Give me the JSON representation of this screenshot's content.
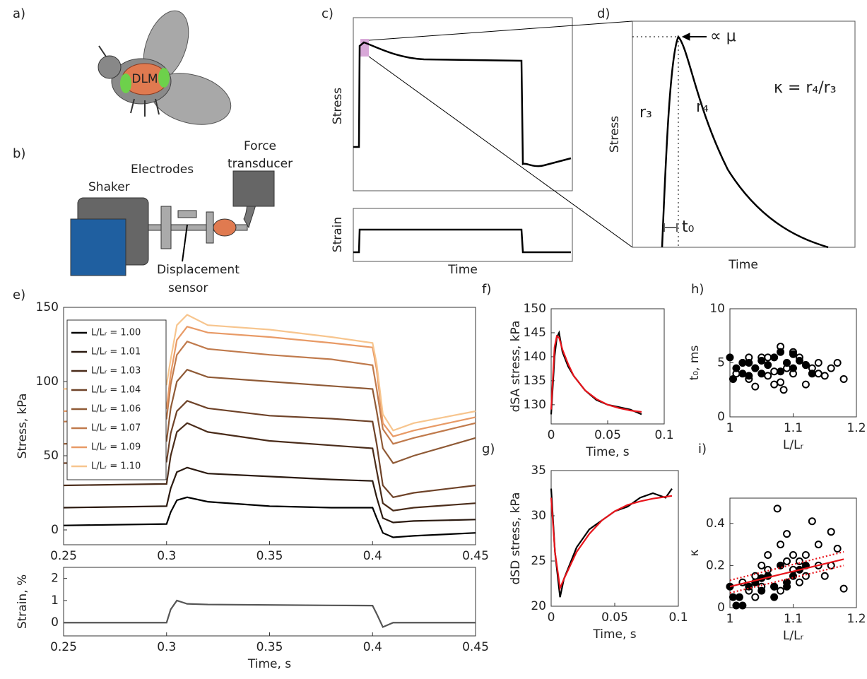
{
  "panel_labels": [
    "a)",
    "b)",
    "c)",
    "d)",
    "e)",
    "f)",
    "g)",
    "h)",
    "i)"
  ],
  "illustrations": {
    "fly_label": "DLM",
    "shaker": "Shaker",
    "electrodes": "Electrodes",
    "force_transducer": [
      "Force",
      "transducer"
    ],
    "displacement_sensor": [
      "Displacement",
      "sensor"
    ]
  },
  "schematics": {
    "c": {
      "stress": "Stress",
      "strain": "Strain",
      "time": "Time"
    },
    "d": {
      "stress": "Stress",
      "time": "Time",
      "peak": "∝ μ",
      "kappa": "κ = r₄/r₃",
      "rise": "r₃",
      "decay": "r₄",
      "delay": "t₀"
    }
  },
  "chart_data": [
    {
      "type": "line",
      "ylabel": "Stress, kPa",
      "xlim": [
        0.25,
        0.45
      ],
      "ylim": [
        -10,
        150
      ],
      "xticks": [
        0.25,
        0.3,
        0.35,
        0.4,
        0.45
      ],
      "yticks": [
        0,
        50,
        100,
        150
      ],
      "legend": "upper left",
      "x": [
        0.25,
        0.3,
        0.302,
        0.305,
        0.31,
        0.32,
        0.35,
        0.38,
        0.4,
        0.402,
        0.405,
        0.41,
        0.42,
        0.45
      ],
      "series": [
        {
          "name": "L/Lᵣ = 1.00",
          "color": "#000000",
          "values": [
            3,
            4,
            12,
            20,
            22,
            19,
            16,
            15,
            15,
            8,
            -2,
            -5,
            -4,
            -2
          ]
        },
        {
          "name": "L/Lᵣ = 1.01",
          "color": "#2b1a10",
          "values": [
            15,
            16,
            28,
            39,
            42,
            38,
            36,
            34,
            33,
            22,
            8,
            5,
            6,
            7
          ]
        },
        {
          "name": "L/Lᵣ = 1.03",
          "color": "#4a2c1a",
          "values": [
            30,
            31,
            50,
            66,
            72,
            66,
            60,
            57,
            55,
            40,
            18,
            13,
            15,
            18
          ]
        },
        {
          "name": "L/Lᵣ = 1.04",
          "color": "#6e4228",
          "values": [
            45,
            46,
            65,
            80,
            87,
            82,
            77,
            75,
            73,
            58,
            30,
            22,
            25,
            30
          ]
        },
        {
          "name": "L/Lᵣ = 1.06",
          "color": "#8f5a36",
          "values": [
            58,
            60,
            82,
            100,
            108,
            103,
            100,
            97,
            95,
            80,
            55,
            45,
            50,
            62
          ]
        },
        {
          "name": "L/Lᵣ = 1.07",
          "color": "#c07a4c",
          "values": [
            73,
            75,
            98,
            118,
            127,
            122,
            118,
            115,
            111,
            95,
            68,
            58,
            62,
            72
          ]
        },
        {
          "name": "L/Lᵣ = 1.09",
          "color": "#e89a66",
          "values": [
            80,
            82,
            105,
            128,
            137,
            133,
            130,
            126,
            123,
            108,
            72,
            63,
            67,
            76
          ]
        },
        {
          "name": "L/Lᵣ = 1.10",
          "color": "#f7c58e",
          "values": [
            95,
            98,
            115,
            138,
            145,
            138,
            135,
            130,
            126,
            112,
            78,
            67,
            72,
            80
          ]
        }
      ]
    },
    {
      "type": "line",
      "xlabel": "Time, s",
      "ylabel": "Strain, %",
      "xlim": [
        0.25,
        0.45
      ],
      "ylim": [
        -0.6,
        2.5
      ],
      "xticks": [
        0.25,
        0.3,
        0.35,
        0.4,
        0.45
      ],
      "yticks": [
        0,
        1,
        2
      ],
      "x": [
        0.25,
        0.3,
        0.302,
        0.305,
        0.31,
        0.32,
        0.35,
        0.38,
        0.4,
        0.402,
        0.405,
        0.41,
        0.42,
        0.45
      ],
      "series": [
        {
          "color": "#555555",
          "values": [
            0,
            0,
            0.6,
            1.0,
            0.85,
            0.82,
            0.8,
            0.78,
            0.77,
            0.4,
            -0.2,
            0,
            0,
            0
          ]
        }
      ]
    },
    {
      "type": "line",
      "xlabel": "Time, s",
      "ylabel": "dSA stress, kPa",
      "xlim": [
        0,
        0.1
      ],
      "ylim": [
        126,
        150
      ],
      "xticks": [
        0,
        0.05,
        0.1
      ],
      "yticks": [
        130,
        135,
        140,
        145,
        150
      ],
      "x": [
        0,
        0.003,
        0.005,
        0.007,
        0.01,
        0.015,
        0.02,
        0.03,
        0.04,
        0.05,
        0.06,
        0.07,
        0.08
      ],
      "series": [
        {
          "color": "#000000",
          "values": [
            128,
            140,
            144,
            145,
            141,
            138,
            136,
            133,
            131,
            130,
            129.5,
            129,
            128
          ]
        },
        {
          "color": "#e8141b",
          "values": [
            129,
            142,
            144.3,
            144,
            141.5,
            138.5,
            136,
            133,
            131.2,
            130,
            129.3,
            128.8,
            128.5
          ]
        }
      ]
    },
    {
      "type": "line",
      "xlabel": "Time, s",
      "ylabel": "dSD stress, kPa",
      "xlim": [
        0,
        0.1
      ],
      "ylim": [
        20,
        35
      ],
      "xticks": [
        0,
        0.05,
        0.1
      ],
      "yticks": [
        20,
        25,
        30,
        35
      ],
      "x": [
        0,
        0.003,
        0.007,
        0.01,
        0.02,
        0.03,
        0.04,
        0.05,
        0.06,
        0.07,
        0.08,
        0.09,
        0.095
      ],
      "series": [
        {
          "color": "#000000",
          "values": [
            33,
            26,
            21,
            23,
            26.5,
            28.5,
            29.5,
            30.5,
            31,
            32,
            32.5,
            32,
            33
          ]
        },
        {
          "color": "#e8141b",
          "values": [
            32,
            26,
            22,
            23,
            26,
            28,
            29.5,
            30.5,
            31.2,
            31.6,
            31.9,
            32.1,
            32.2
          ]
        }
      ]
    },
    {
      "type": "scatter",
      "xlabel": "L/Lᵣ",
      "ylabel": "t₀, ms",
      "xlim": [
        1,
        1.2
      ],
      "ylim": [
        0,
        10
      ],
      "xticks": [
        1,
        1.1,
        1.2
      ],
      "yticks": [
        0,
        5,
        10
      ],
      "series": [
        {
          "color": "#000000",
          "marker": "filled",
          "x": [
            1.0,
            1.005,
            1.01,
            1.02,
            1.03,
            1.04,
            1.05,
            1.06,
            1.07,
            1.08,
            1.09,
            1.1,
            1.11,
            1.12,
            1.13,
            1.05,
            1.08,
            1.1,
            1.03,
            1.02
          ],
          "values": [
            5.5,
            3.5,
            4.5,
            4.0,
            5.0,
            4.5,
            5.2,
            4.8,
            5.5,
            6.0,
            5.0,
            4.5,
            5.2,
            4.8,
            4.0,
            4.0,
            4.2,
            5.8,
            3.8,
            5.0
          ]
        },
        {
          "color": "#000000",
          "marker": "open",
          "x": [
            1.01,
            1.02,
            1.03,
            1.04,
            1.05,
            1.06,
            1.07,
            1.08,
            1.085,
            1.09,
            1.1,
            1.11,
            1.12,
            1.13,
            1.14,
            1.15,
            1.16,
            1.17,
            1.18,
            1.04,
            1.06,
            1.08,
            1.1,
            1.12,
            1.14,
            1.03,
            1.07,
            1.09
          ],
          "values": [
            4.0,
            5.0,
            3.5,
            4.5,
            5.5,
            3.8,
            4.2,
            6.5,
            2.5,
            5.0,
            4.0,
            5.5,
            3.0,
            4.5,
            5.0,
            3.8,
            4.5,
            5.0,
            3.5,
            2.8,
            5.5,
            3.2,
            6.0,
            4.8,
            4.0,
            5.5,
            3.0,
            4.5
          ]
        }
      ]
    },
    {
      "type": "scatter",
      "xlabel": "L/Lᵣ",
      "ylabel": "κ",
      "xlim": [
        1,
        1.2
      ],
      "ylim": [
        0,
        0.52
      ],
      "xticks": [
        1,
        1.1,
        1.2
      ],
      "yticks": [
        0,
        0.2,
        0.4
      ],
      "series": [
        {
          "color": "#000000",
          "marker": "filled",
          "x": [
            1.0,
            1.005,
            1.01,
            1.015,
            1.02,
            1.03,
            1.04,
            1.05,
            1.06,
            1.07,
            1.08,
            1.09,
            1.1,
            1.11,
            1.12,
            1.05,
            1.07,
            1.09
          ],
          "values": [
            0.1,
            0.05,
            0.01,
            0.05,
            0.01,
            0.1,
            0.12,
            0.08,
            0.15,
            0.1,
            0.2,
            0.12,
            0.15,
            0.18,
            0.2,
            0.14,
            0.05,
            0.1
          ]
        },
        {
          "color": "#000000",
          "marker": "open",
          "x": [
            1.02,
            1.03,
            1.04,
            1.05,
            1.06,
            1.07,
            1.075,
            1.08,
            1.09,
            1.1,
            1.11,
            1.12,
            1.13,
            1.14,
            1.15,
            1.16,
            1.17,
            1.18,
            1.04,
            1.06,
            1.08,
            1.1,
            1.12,
            1.14,
            1.16,
            1.05,
            1.09,
            1.11
          ],
          "values": [
            0.12,
            0.08,
            0.15,
            0.2,
            0.25,
            0.1,
            0.47,
            0.3,
            0.22,
            0.18,
            0.12,
            0.25,
            0.41,
            0.2,
            0.15,
            0.36,
            0.28,
            0.09,
            0.05,
            0.18,
            0.08,
            0.25,
            0.15,
            0.3,
            0.2,
            0.1,
            0.35,
            0.22
          ]
        },
        {
          "color": "#e8141b",
          "mode": "line",
          "x": [
            1,
            1.18
          ],
          "values": [
            0.1,
            0.23
          ]
        },
        {
          "color": "#e8141b",
          "mode": "line",
          "style": "dotted",
          "x": [
            1,
            1.18
          ],
          "values": [
            0.13,
            0.265
          ]
        },
        {
          "color": "#e8141b",
          "mode": "line",
          "style": "dotted",
          "x": [
            1,
            1.18
          ],
          "values": [
            0.07,
            0.2
          ]
        }
      ]
    }
  ]
}
